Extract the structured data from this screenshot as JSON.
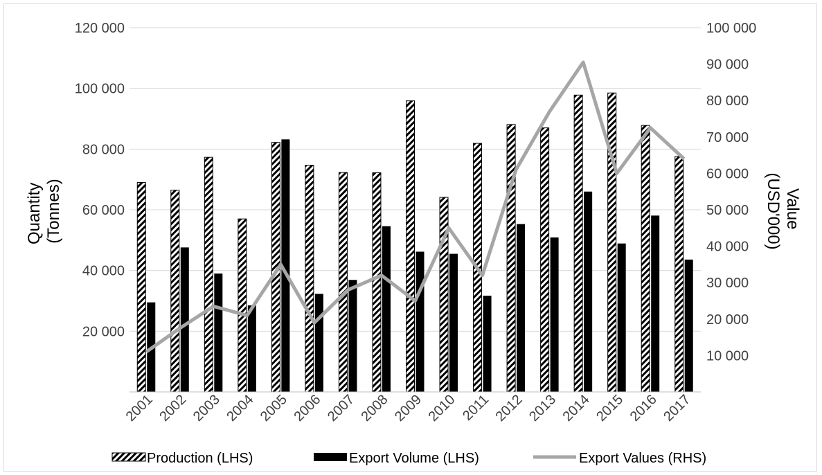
{
  "chart_data": {
    "type": "bar",
    "categories": [
      "2001",
      "2002",
      "2003",
      "2004",
      "2005",
      "2006",
      "2007",
      "2008",
      "2009",
      "2010",
      "2011",
      "2012",
      "2013",
      "2014",
      "2015",
      "2016",
      "2017"
    ],
    "series": [
      {
        "name": "Production (LHS)",
        "kind": "bar",
        "axis": "left",
        "pattern": "diagonal-stripes",
        "values": [
          69000,
          66500,
          77300,
          57000,
          82200,
          74700,
          72300,
          72200,
          95900,
          64100,
          81900,
          88100,
          87000,
          97800,
          98500,
          87800,
          77600
        ]
      },
      {
        "name": "Export Volume (LHS)",
        "kind": "bar",
        "axis": "left",
        "color": "#000000",
        "values": [
          29500,
          47600,
          39000,
          28500,
          83200,
          32300,
          36900,
          54600,
          46200,
          45500,
          31700,
          55300,
          50900,
          66000,
          48900,
          58100,
          43600
        ]
      },
      {
        "name": "Export Values (RHS)",
        "kind": "line",
        "axis": "right",
        "color": "#a6a6a6",
        "values": [
          11000,
          17500,
          23500,
          21000,
          35000,
          19000,
          28000,
          32000,
          25000,
          45000,
          32000,
          61000,
          77000,
          90500,
          60000,
          72500,
          64000
        ]
      }
    ],
    "ylabel_left": [
      "Quantity",
      "(Tonnes)"
    ],
    "ylabel_right": [
      "Value",
      "(USD'000)"
    ],
    "ylim_left": [
      0,
      120000
    ],
    "ylim_right": [
      0,
      100000
    ],
    "yticks_left": [
      "20 000",
      "40 000",
      "60 000",
      "80 000",
      "100 000",
      "120 000"
    ],
    "yticks_left_values": [
      20000,
      40000,
      60000,
      80000,
      100000,
      120000
    ],
    "yticks_right": [
      "10 000",
      "20 000",
      "30 000",
      "40 000",
      "50 000",
      "60 000",
      "70 000",
      "80 000",
      "90 000",
      "100 000"
    ],
    "yticks_right_values": [
      10000,
      20000,
      30000,
      40000,
      50000,
      60000,
      70000,
      80000,
      90000,
      100000
    ],
    "grid": true,
    "legend_position": "bottom"
  },
  "colors": {
    "grid": "#d9d9d9",
    "axis": "#bfbfbf",
    "line": "#a6a6a6",
    "bar": "#000000"
  }
}
